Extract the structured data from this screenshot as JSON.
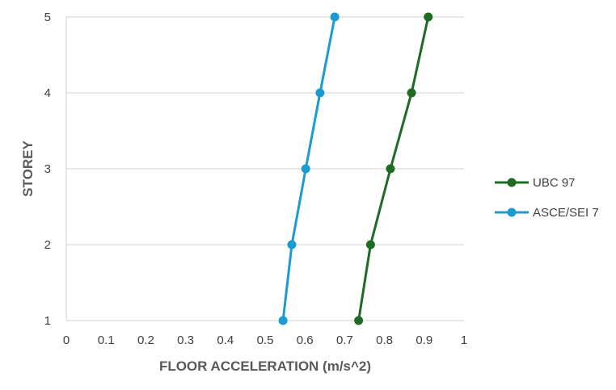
{
  "chart_data": {
    "type": "line",
    "title": "",
    "xlabel": "FLOOR ACCELERATION (m/s^2)",
    "ylabel": "STOREY",
    "xlim": [
      0,
      1
    ],
    "ylim": [
      1,
      5
    ],
    "x_ticks": [
      "0",
      "0.1",
      "0.2",
      "0.3",
      "0.4",
      "0.5",
      "0.6",
      "0.7",
      "0.8",
      "0.9",
      "1"
    ],
    "y_ticks": [
      "1",
      "2",
      "3",
      "4",
      "5"
    ],
    "grid": "horizontal",
    "legend_position": "right",
    "series": [
      {
        "name": "UBC 97",
        "color": "#1e6b24",
        "points": [
          {
            "x": 0.735,
            "y": 1
          },
          {
            "x": 0.765,
            "y": 2
          },
          {
            "x": 0.815,
            "y": 3
          },
          {
            "x": 0.868,
            "y": 4
          },
          {
            "x": 0.91,
            "y": 5
          }
        ]
      },
      {
        "name": "ASCE/SEI 7",
        "color": "#1b9bd1",
        "points": [
          {
            "x": 0.545,
            "y": 1
          },
          {
            "x": 0.567,
            "y": 2
          },
          {
            "x": 0.602,
            "y": 3
          },
          {
            "x": 0.638,
            "y": 4
          },
          {
            "x": 0.675,
            "y": 5
          }
        ]
      }
    ]
  }
}
